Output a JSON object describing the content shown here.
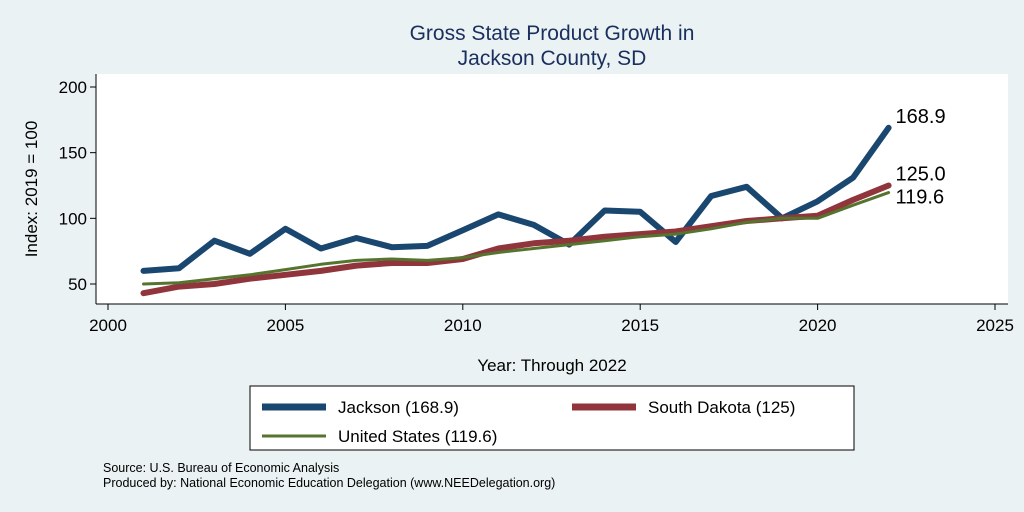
{
  "chart_data": {
    "type": "line",
    "title": [
      "Gross State Product Growth in",
      "Jackson County, SD"
    ],
    "xlabel": "Year: Through 2022",
    "ylabel": "Index: 2019 = 100",
    "xlim": [
      2000,
      2025
    ],
    "ylim": [
      40,
      210
    ],
    "xticks": [
      2000,
      2005,
      2010,
      2015,
      2020,
      2025
    ],
    "yticks": [
      50,
      100,
      150,
      200
    ],
    "grid": false,
    "legend_position": "bottom",
    "x": [
      2001,
      2002,
      2003,
      2004,
      2005,
      2006,
      2007,
      2008,
      2009,
      2010,
      2011,
      2012,
      2013,
      2014,
      2015,
      2016,
      2017,
      2018,
      2019,
      2020,
      2021,
      2022
    ],
    "series": [
      {
        "name": "Jackson  (168.9)",
        "color": "#1a476f",
        "end_label": "168.9",
        "values": [
          60,
          62,
          83,
          73,
          92,
          77,
          85,
          78,
          79,
          91,
          103,
          95,
          80,
          106,
          105,
          82,
          117,
          124,
          100,
          113,
          131,
          168.9
        ]
      },
      {
        "name": "South Dakota (125)",
        "color": "#90353b",
        "end_label": "125.0",
        "values": [
          43,
          48,
          50,
          54,
          57,
          60,
          64,
          66,
          66,
          69,
          77,
          81,
          83,
          86,
          88,
          90,
          94,
          98,
          100,
          102,
          114,
          125.0
        ]
      },
      {
        "name": "United States (119.6)",
        "color": "#55752f",
        "end_label": "119.6",
        "values": [
          50,
          51,
          54,
          57,
          61,
          65,
          68,
          69,
          68,
          70,
          74,
          77,
          80,
          83,
          86,
          88,
          92,
          97,
          100,
          100,
          110,
          119.6
        ]
      }
    ],
    "notes": [
      "Source: U.S. Bureau of Economic Analysis",
      "Produced by: National Economic Education Delegation (www.NEEDelegation.org)"
    ]
  }
}
